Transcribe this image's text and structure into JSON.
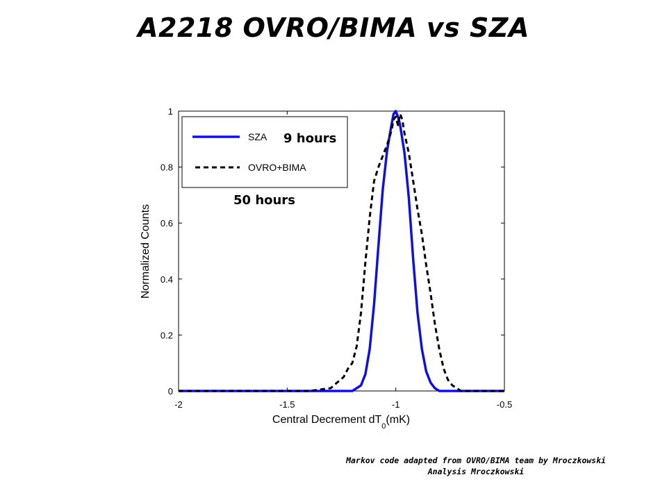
{
  "slide": {
    "title": "A2218 OVRO/BIMA vs SZA",
    "credit_line_1": "Markov code adapted from OVRO/BIMA team by Mroczkowski",
    "credit_line_2": "Analysis Mroczkowski"
  },
  "chart_data": {
    "type": "line",
    "title": "",
    "xlabel_main": "Central Decrement dT",
    "xlabel_sub": "0",
    "xlabel_unit": "(mK)",
    "ylabel": "Normalized Counts",
    "xlim": [
      -2,
      -0.5
    ],
    "ylim": [
      0,
      1
    ],
    "x_ticks": [
      -2,
      -1.5,
      -1,
      -0.5
    ],
    "x_tick_labels": [
      "-2",
      "-1.5",
      "-1",
      "-0.5"
    ],
    "y_ticks": [
      0,
      0.2,
      0.4,
      0.6,
      0.8,
      1
    ],
    "y_tick_labels": [
      "0",
      "0.2",
      "0.4",
      "0.6",
      "0.8",
      "1"
    ],
    "grid": false,
    "legend_position": "top-left",
    "series": [
      {
        "name": "SZA",
        "color": "#1010dd",
        "style": "solid",
        "x": [
          -2.0,
          -1.5,
          -1.3,
          -1.2,
          -1.16,
          -1.14,
          -1.12,
          -1.1,
          -1.08,
          -1.06,
          -1.04,
          -1.02,
          -1.01,
          -1.0,
          -0.99,
          -0.98,
          -0.96,
          -0.94,
          -0.92,
          -0.9,
          -0.88,
          -0.86,
          -0.84,
          -0.82,
          -0.8,
          -0.75,
          -0.6,
          -0.5
        ],
        "values": [
          0.0,
          0.0,
          0.0,
          0.0,
          0.02,
          0.06,
          0.15,
          0.31,
          0.52,
          0.72,
          0.86,
          0.95,
          0.99,
          1.0,
          0.98,
          0.95,
          0.85,
          0.69,
          0.47,
          0.28,
          0.15,
          0.07,
          0.03,
          0.01,
          0.0,
          0.0,
          0.0,
          0.0
        ]
      },
      {
        "name": "OVRO+BIMA",
        "color": "#000000",
        "style": "dashed",
        "x": [
          -2.0,
          -1.5,
          -1.4,
          -1.35,
          -1.3,
          -1.27,
          -1.24,
          -1.22,
          -1.2,
          -1.18,
          -1.16,
          -1.14,
          -1.12,
          -1.1,
          -1.08,
          -1.06,
          -1.04,
          -1.02,
          -1.01,
          -1.0,
          -0.99,
          -0.98,
          -0.97,
          -0.96,
          -0.94,
          -0.92,
          -0.9,
          -0.88,
          -0.86,
          -0.84,
          -0.82,
          -0.8,
          -0.78,
          -0.76,
          -0.74,
          -0.72,
          -0.7,
          -0.6,
          -0.5
        ],
        "values": [
          0.0,
          0.0,
          0.0,
          0.005,
          0.01,
          0.03,
          0.05,
          0.08,
          0.1,
          0.16,
          0.28,
          0.46,
          0.62,
          0.75,
          0.8,
          0.84,
          0.88,
          0.93,
          0.97,
          0.98,
          0.95,
          0.99,
          0.97,
          0.92,
          0.85,
          0.75,
          0.65,
          0.56,
          0.45,
          0.35,
          0.24,
          0.15,
          0.08,
          0.04,
          0.02,
          0.01,
          0.0,
          0.0,
          0.0
        ]
      }
    ],
    "legend": [
      {
        "label": "SZA",
        "series": 0
      },
      {
        "label": "OVRO+BIMA",
        "series": 1
      }
    ],
    "annotations": {
      "sza_hours": "9 hours",
      "ovro_hours": "50 hours"
    }
  }
}
